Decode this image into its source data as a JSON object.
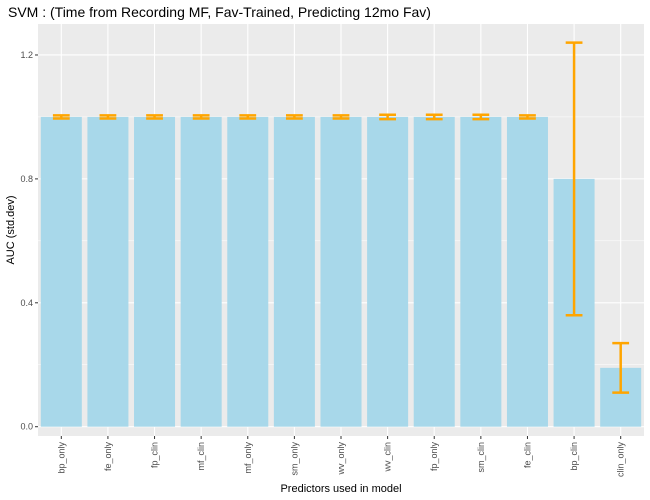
{
  "chart_data": {
    "type": "bar",
    "title": "SVM : (Time from Recording MF, Fav-Trained, Predicting 12mo Fav)",
    "xlabel": "Predictors used in model",
    "ylabel": "AUC (std.dev)",
    "categories": [
      "bp_only",
      "fe_only",
      "fp_clin",
      "mf_clin",
      "mf_only",
      "sm_only",
      "wv_only",
      "wv_clin",
      "fp_only",
      "sm_clin",
      "fe_clin",
      "bp_clin",
      "clin_only"
    ],
    "values": [
      1.0,
      1.0,
      1.0,
      1.0,
      1.0,
      1.0,
      1.0,
      1.0,
      1.0,
      1.0,
      1.0,
      0.8,
      0.19
    ],
    "error_low": [
      0.995,
      0.995,
      0.995,
      0.995,
      0.995,
      0.995,
      0.995,
      0.993,
      0.993,
      0.993,
      0.995,
      0.36,
      0.11
    ],
    "error_high": [
      1.005,
      1.005,
      1.005,
      1.005,
      1.005,
      1.005,
      1.005,
      1.007,
      1.007,
      1.007,
      1.005,
      1.24,
      0.27
    ],
    "yticks": [
      "0.0",
      "0.4",
      "0.8",
      "1.2"
    ],
    "ylim": [
      -0.03,
      1.3
    ],
    "grid": true,
    "colors": {
      "bar": "#a8d8ea",
      "error": "#ffa500",
      "panel": "#ebebeb",
      "gridline": "#ffffff"
    }
  }
}
